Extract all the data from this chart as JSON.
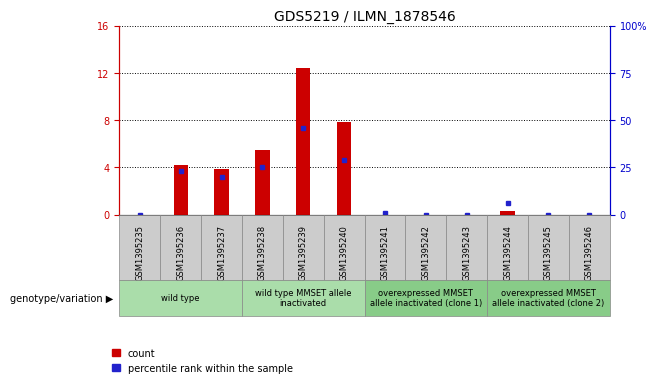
{
  "title": "GDS5219 / ILMN_1878546",
  "samples": [
    "GSM1395235",
    "GSM1395236",
    "GSM1395237",
    "GSM1395238",
    "GSM1395239",
    "GSM1395240",
    "GSM1395241",
    "GSM1395242",
    "GSM1395243",
    "GSM1395244",
    "GSM1395245",
    "GSM1395246"
  ],
  "counts": [
    0.0,
    4.2,
    3.85,
    5.5,
    12.45,
    7.8,
    0.0,
    0.0,
    0.0,
    0.28,
    0.0,
    0.0
  ],
  "percentile_pct": [
    0.0,
    23.0,
    20.0,
    25.0,
    46.0,
    29.0,
    1.0,
    0.0,
    0.0,
    6.0,
    0.0,
    0.0
  ],
  "ylim_left": [
    0,
    16
  ],
  "ylim_right": [
    0,
    100
  ],
  "yticks_left": [
    0,
    4,
    8,
    12,
    16
  ],
  "yticks_right": [
    0,
    25,
    50,
    75,
    100
  ],
  "ytick_labels_right": [
    "0",
    "25",
    "50",
    "75",
    "100%"
  ],
  "bar_color": "#cc0000",
  "dot_color": "#2222cc",
  "bg_plot": "#ffffff",
  "grid_color": "#000000",
  "groups": [
    {
      "label": "wild type",
      "start": 0,
      "end": 2,
      "color": "#aaddaa"
    },
    {
      "label": "wild type MMSET allele\ninactivated",
      "start": 3,
      "end": 5,
      "color": "#aaddaa"
    },
    {
      "label": "overexpressed MMSET\nallele inactivated (clone 1)",
      "start": 6,
      "end": 8,
      "color": "#88cc88"
    },
    {
      "label": "overexpressed MMSET\nallele inactivated (clone 2)",
      "start": 9,
      "end": 11,
      "color": "#88cc88"
    }
  ],
  "legend_count_label": "count",
  "legend_pct_label": "percentile rank within the sample",
  "left_axis_color": "#cc0000",
  "right_axis_color": "#0000cc",
  "bar_width": 0.35,
  "tick_fontsize": 7,
  "title_fontsize": 10,
  "label_fontsize": 7,
  "cell_bg": "#cccccc",
  "cell_border": "#888888"
}
